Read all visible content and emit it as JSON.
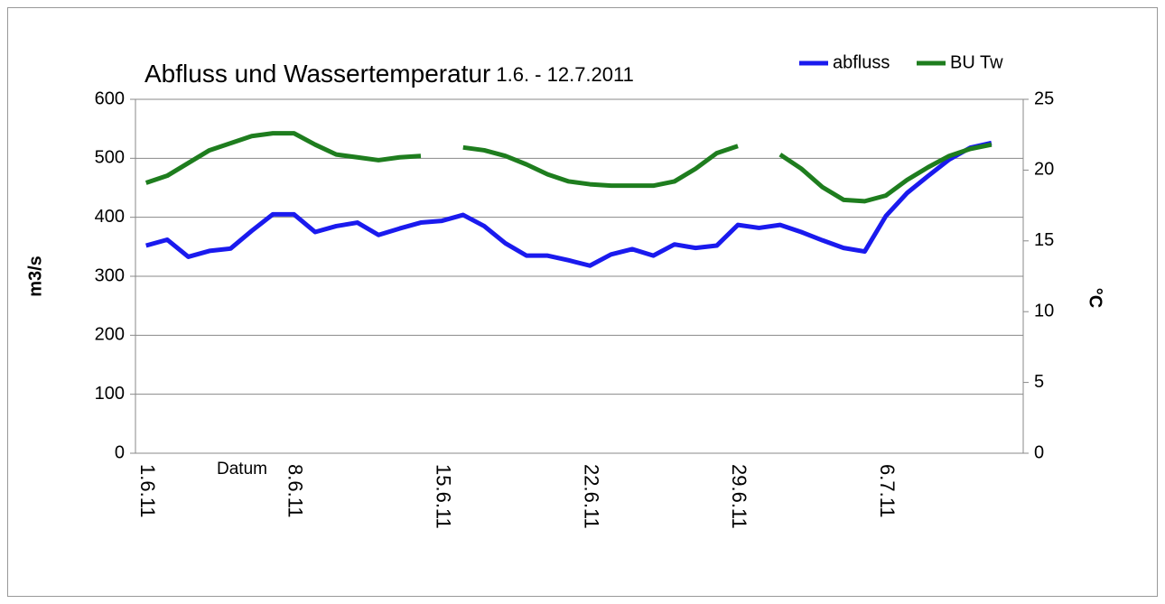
{
  "chart_data": {
    "type": "line",
    "title": "Abfluss und Wassertemperatur",
    "subtitle": "1.6. - 12.7.2011",
    "xlabel": "Datum",
    "ylabel": "m3/s",
    "y2label": "°C",
    "categories": [
      "1.6.11",
      null,
      null,
      null,
      null,
      null,
      null,
      "8.6.11",
      null,
      null,
      null,
      null,
      null,
      null,
      "15.6.11",
      null,
      null,
      null,
      null,
      null,
      null,
      "22.6.11",
      null,
      null,
      null,
      null,
      null,
      null,
      "29.6.11",
      null,
      null,
      null,
      null,
      null,
      null,
      "6.7.11",
      null,
      null,
      null,
      null,
      null,
      null
    ],
    "series": [
      {
        "name": "abfluss",
        "color": "#1a1aee",
        "axis": "y",
        "values": [
          352,
          362,
          333,
          343,
          347,
          377,
          405,
          405,
          375,
          385,
          391,
          370,
          381,
          391,
          394,
          404,
          385,
          356,
          335,
          335,
          327,
          318,
          337,
          346,
          335,
          354,
          348,
          352,
          387,
          382,
          387,
          375,
          361,
          348,
          342,
          402,
          441,
          470,
          498,
          518,
          526,
          null
        ]
      },
      {
        "name": "BU Tw",
        "color": "#1e7d1e",
        "axis": "y2",
        "values": [
          19.1,
          19.6,
          20.5,
          21.4,
          21.9,
          22.4,
          22.6,
          22.6,
          21.8,
          21.1,
          20.9,
          20.7,
          20.9,
          21.0,
          null,
          21.6,
          21.4,
          21.0,
          20.4,
          19.7,
          19.2,
          19.0,
          18.9,
          18.9,
          18.9,
          19.2,
          20.1,
          21.2,
          21.7,
          null,
          21.1,
          20.1,
          18.8,
          17.9,
          17.8,
          18.2,
          19.3,
          20.2,
          21.0,
          21.5,
          21.8,
          null
        ]
      }
    ],
    "ylim": [
      0,
      600
    ],
    "yticks": [
      0,
      100,
      200,
      300,
      400,
      500,
      600
    ],
    "y2lim": [
      0,
      25
    ],
    "y2ticks": [
      0,
      5,
      10,
      15,
      20,
      25
    ],
    "grid": true,
    "legend": "top-right"
  }
}
